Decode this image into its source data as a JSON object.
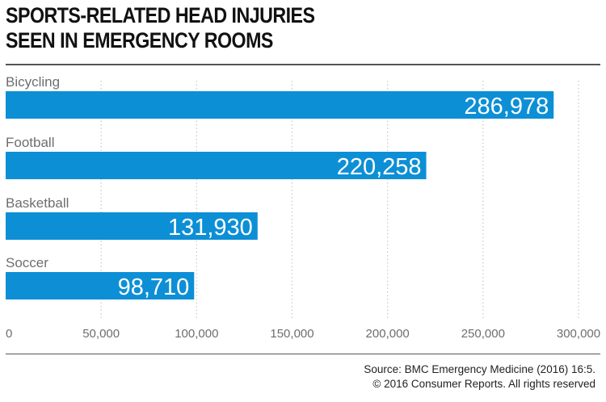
{
  "title_lines": [
    "SPORTS-RELATED HEAD INJURIES",
    "SEEN IN EMERGENCY ROOMS"
  ],
  "source_lines": [
    "Source: BMC Emergency Medicine (2016) 16:5.",
    "© 2016 Consumer Reports. All rights reserved"
  ],
  "colors": {
    "bar": "#0d8fd6",
    "bar_label": "#ffffff",
    "category_label": "#6d6e71",
    "tick_label": "#6d6e71",
    "grid": "#c8c8c8",
    "title": "#111111"
  },
  "chart_data": {
    "type": "bar",
    "orientation": "horizontal",
    "title": "SPORTS-RELATED HEAD INJURIES SEEN IN EMERGENCY ROOMS",
    "categories": [
      "Bicycling",
      "Football",
      "Basketball",
      "Soccer"
    ],
    "values": [
      286978,
      220258,
      131930,
      98710
    ],
    "value_labels": [
      "286,978",
      "220,258",
      "131,930",
      "98,710"
    ],
    "xlim": [
      0,
      300000
    ],
    "xticks": [
      0,
      50000,
      100000,
      150000,
      200000,
      250000,
      300000
    ],
    "xtick_labels": [
      "0",
      "50,000",
      "100,000",
      "150,000",
      "200,000",
      "250,000",
      "300,000"
    ],
    "grid": "vertical dotted",
    "legend": "none"
  }
}
